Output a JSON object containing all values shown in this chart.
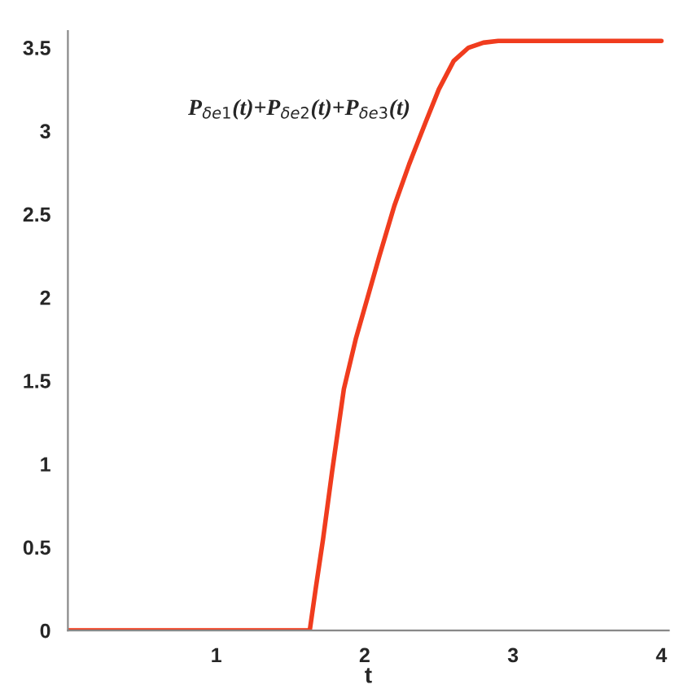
{
  "chart_data": {
    "type": "line",
    "xlabel": "t",
    "annotations": [
      "P$_{δe1}$(t)+P$_{δe2}$(t)+P$_{δe3}$(t)"
    ],
    "series": [
      {
        "color": "#f03c1e",
        "x": [
          0,
          1.63,
          1.67,
          1.72,
          1.78,
          1.86,
          1.94,
          2.02,
          2.1,
          2.2,
          2.3,
          2.41,
          2.5,
          2.6,
          2.7,
          2.8,
          2.9,
          3.0,
          4.0
        ],
        "values": [
          0,
          0,
          0.25,
          0.55,
          0.95,
          1.45,
          1.75,
          2.0,
          2.25,
          2.55,
          2.8,
          3.05,
          3.25,
          3.42,
          3.5,
          3.53,
          3.54,
          3.54,
          3.54
        ]
      }
    ],
    "xlim": [
      0,
      4.05
    ],
    "ylim": [
      0,
      3.6
    ],
    "xticks": [
      1,
      2,
      3,
      4
    ],
    "yticks": [
      {
        "value": 0,
        "label": "0"
      },
      0.5,
      1,
      1.5,
      2,
      2.5,
      3,
      3.5
    ],
    "grid": false,
    "legend": false
  }
}
